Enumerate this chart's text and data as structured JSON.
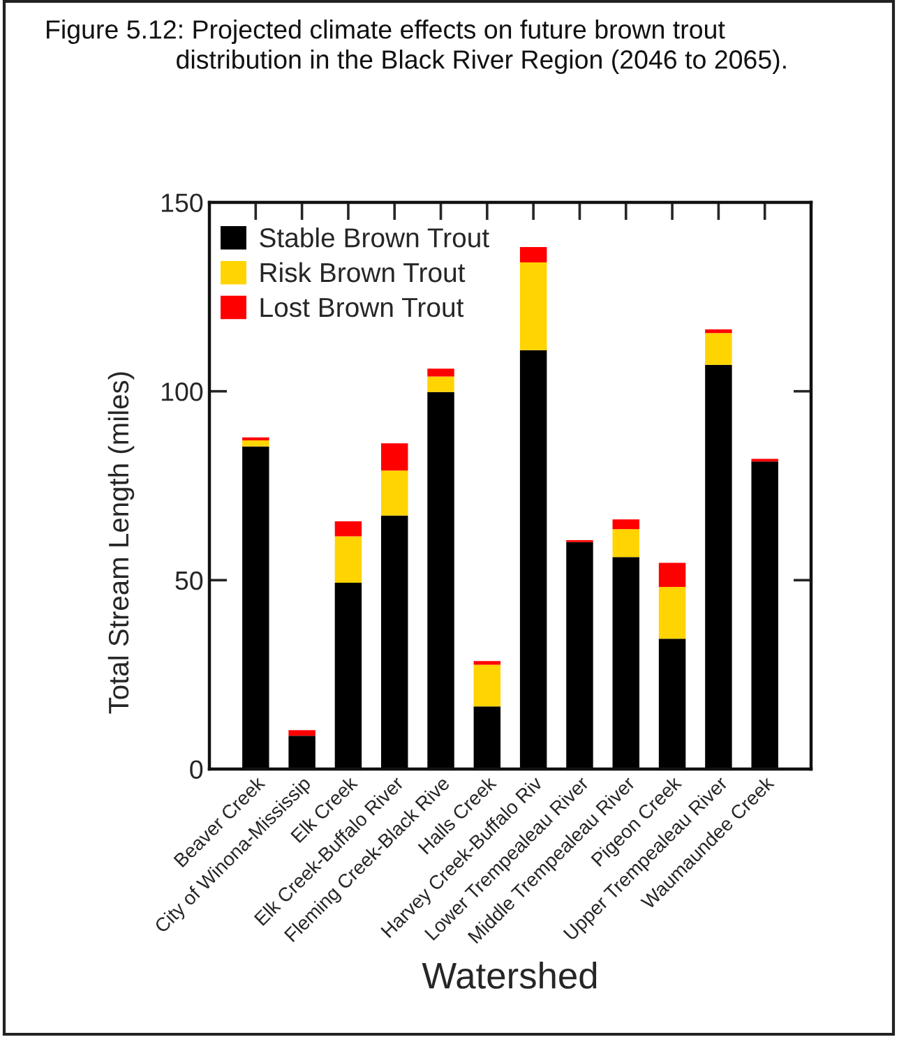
{
  "chart_data": {
    "type": "bar",
    "title": "Figure 5.12: Projected climate effects on future brown trout distribution in the Black River Region (2046 to 2065).",
    "xlabel": "Watershed",
    "ylabel": "Total Stream Length (miles)",
    "categories": [
      "Beaver Creek",
      "City of Winona-Mississip",
      "Elk Creek",
      "Elk Creek-Buffalo River",
      "Fleming Creek-Black Rive",
      "Halls Creek",
      "Harvey Creek-Buffalo Riv",
      "Lower Trempealeau River",
      "Middle Trempealeau River",
      "Pigeon Creek",
      "Upper Trempealeau River",
      "Waumaundee Creek"
    ],
    "stacked": true,
    "series": [
      {
        "name": "Stable Brown Trout",
        "color": "#000000",
        "values": [
          85.4,
          8.8,
          49.3,
          67.1,
          99.8,
          16.6,
          110.9,
          60.1,
          56.1,
          34.5,
          107.0,
          81.4
        ]
      },
      {
        "name": "Risk Brown Trout",
        "color": "#ffd400",
        "values": [
          1.6,
          null,
          12.3,
          11.9,
          4.1,
          11.0,
          23.2,
          null,
          7.4,
          13.7,
          8.4,
          null
        ]
      },
      {
        "name": "Lost Brown Trout",
        "color": "#ff0000",
        "values": [
          0.8,
          1.5,
          4.0,
          7.2,
          2.1,
          1.0,
          4.1,
          0.5,
          2.6,
          6.4,
          1.0,
          0.7
        ]
      }
    ],
    "ylim": [
      0,
      150
    ],
    "yticks": [
      0,
      50,
      100,
      150
    ],
    "legend": "top left"
  }
}
